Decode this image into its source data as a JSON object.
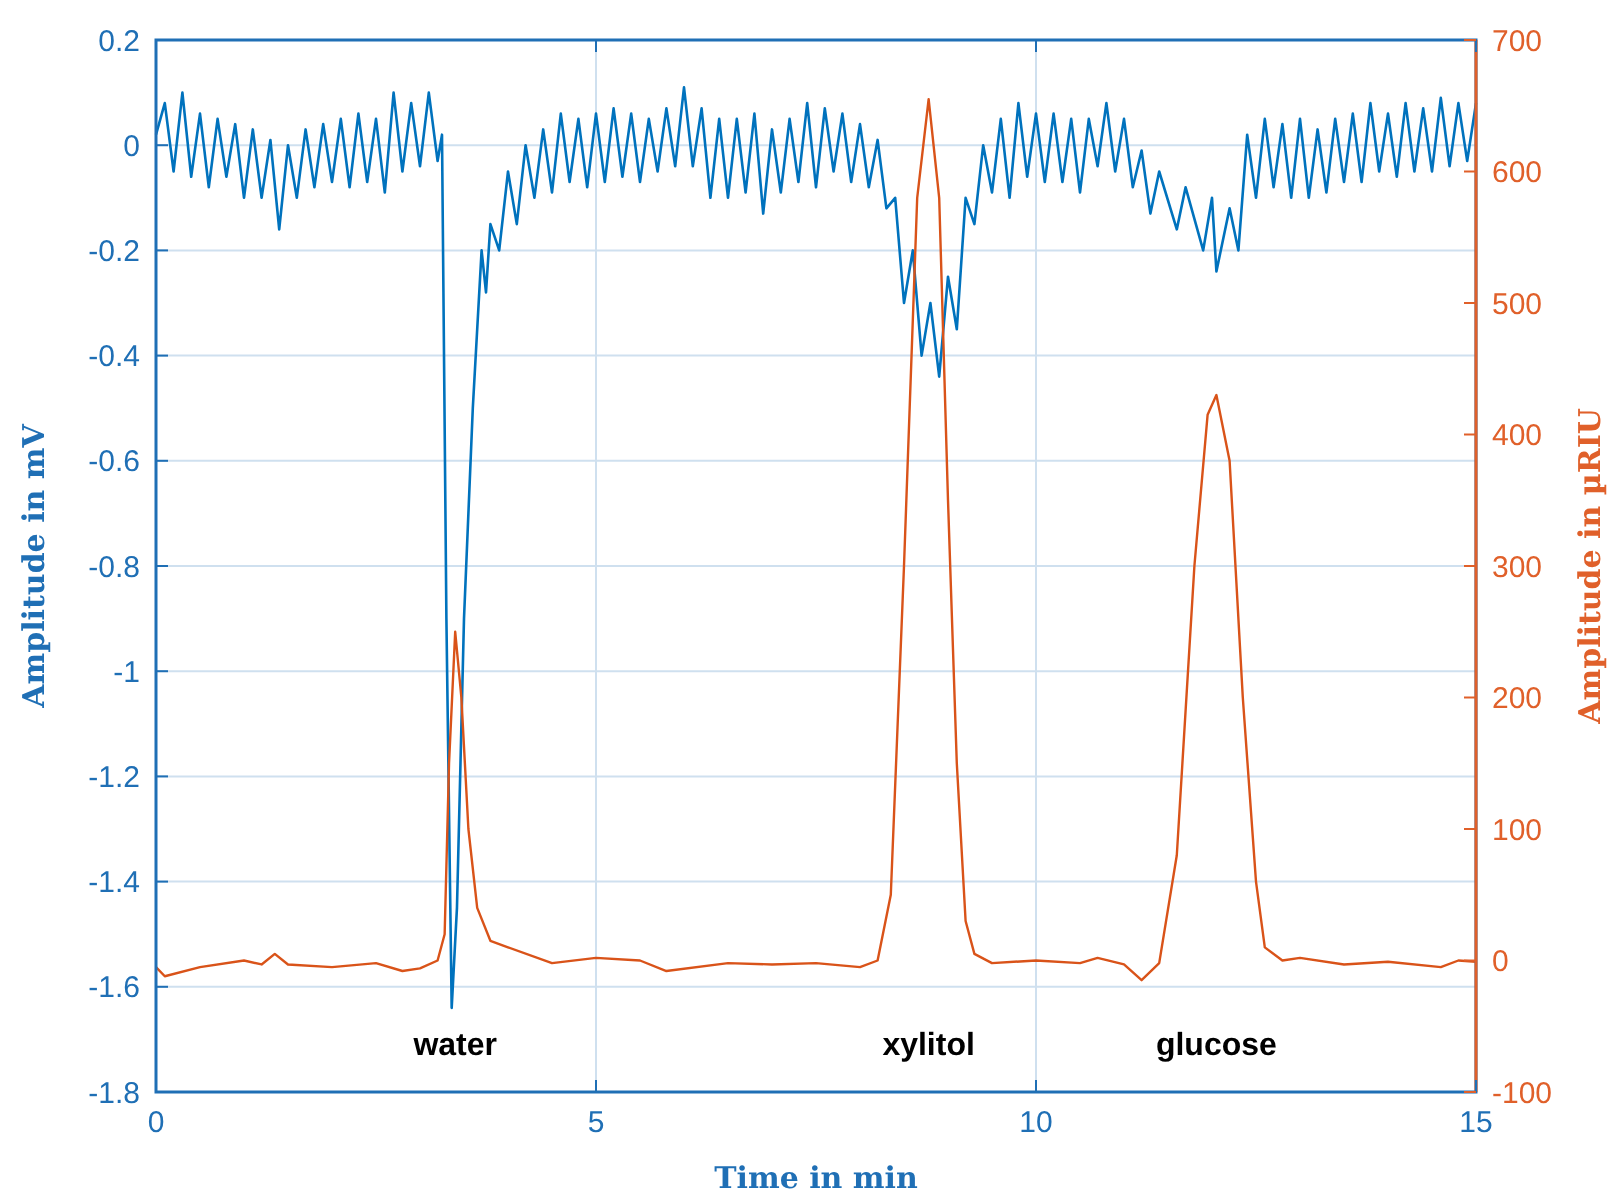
{
  "chart_data": {
    "type": "line",
    "xlabel": "Time in min",
    "ylabel": "Amplitude in mV",
    "y2label": "Amplitude in µRIU",
    "xlim": [
      0,
      15
    ],
    "xticks": [
      0,
      5,
      10,
      15
    ],
    "ylim": [
      -1.8,
      0.2
    ],
    "yticks": [
      -1.8,
      -1.6,
      -1.4,
      -1.2,
      -1,
      -0.8,
      -0.6,
      -0.4,
      -0.2,
      0,
      0.2
    ],
    "y2lim": [
      -100,
      700
    ],
    "y2ticks": [
      -100,
      0,
      100,
      200,
      300,
      400,
      500,
      600,
      700
    ],
    "grid": true,
    "line_style": "solid",
    "marker": "none",
    "annotations": [
      "water",
      "xylitol",
      "glucose"
    ],
    "series": [
      {
        "color": "#0072bd",
        "x": [
          0,
          0.1,
          0.2,
          0.3,
          0.4,
          0.5,
          0.6,
          0.7,
          0.8,
          0.9,
          1.0,
          1.1,
          1.2,
          1.3,
          1.4,
          1.5,
          1.6,
          1.7,
          1.8,
          1.9,
          2.0,
          2.1,
          2.2,
          2.3,
          2.4,
          2.5,
          2.6,
          2.7,
          2.8,
          2.9,
          3.0,
          3.1,
          3.2,
          3.25,
          3.3,
          3.36,
          3.42,
          3.5,
          3.6,
          3.65,
          3.7,
          3.75,
          3.8,
          3.9,
          4.0,
          4.1,
          4.2,
          4.3,
          4.4,
          4.5,
          4.6,
          4.7,
          4.8,
          4.9,
          5.0,
          5.1,
          5.2,
          5.3,
          5.4,
          5.5,
          5.6,
          5.7,
          5.8,
          5.9,
          6.0,
          6.1,
          6.2,
          6.3,
          6.4,
          6.5,
          6.6,
          6.7,
          6.8,
          6.9,
          7.0,
          7.1,
          7.2,
          7.3,
          7.4,
          7.5,
          7.6,
          7.7,
          7.8,
          7.9,
          8.0,
          8.1,
          8.2,
          8.3,
          8.4,
          8.5,
          8.6,
          8.7,
          8.8,
          8.9,
          9.0,
          9.1,
          9.2,
          9.3,
          9.4,
          9.5,
          9.6,
          9.7,
          9.8,
          9.9,
          10.0,
          10.1,
          10.2,
          10.3,
          10.4,
          10.5,
          10.6,
          10.7,
          10.8,
          10.9,
          11.0,
          11.1,
          11.2,
          11.3,
          11.4,
          11.6,
          11.7,
          11.9,
          12.0,
          12.05,
          12.2,
          12.3,
          12.4,
          12.5,
          12.6,
          12.7,
          12.8,
          12.9,
          13.0,
          13.1,
          13.2,
          13.3,
          13.4,
          13.5,
          13.6,
          13.7,
          13.8,
          13.9,
          14.0,
          14.1,
          14.2,
          14.3,
          14.4,
          14.5,
          14.6,
          14.7,
          14.8,
          14.9,
          15.0
        ],
        "values": [
          0.02,
          0.08,
          -0.05,
          0.1,
          -0.06,
          0.06,
          -0.08,
          0.05,
          -0.06,
          0.04,
          -0.1,
          0.03,
          -0.1,
          0.01,
          -0.16,
          0.0,
          -0.1,
          0.03,
          -0.08,
          0.04,
          -0.07,
          0.05,
          -0.08,
          0.06,
          -0.07,
          0.05,
          -0.09,
          0.1,
          -0.05,
          0.08,
          -0.04,
          0.1,
          -0.03,
          0.02,
          -0.9,
          -1.64,
          -1.45,
          -0.9,
          -0.5,
          -0.35,
          -0.2,
          -0.28,
          -0.15,
          -0.2,
          -0.05,
          -0.15,
          0.0,
          -0.1,
          0.03,
          -0.09,
          0.06,
          -0.07,
          0.05,
          -0.08,
          0.06,
          -0.07,
          0.07,
          -0.06,
          0.06,
          -0.07,
          0.05,
          -0.05,
          0.07,
          -0.04,
          0.11,
          -0.04,
          0.07,
          -0.1,
          0.05,
          -0.1,
          0.05,
          -0.09,
          0.06,
          -0.13,
          0.03,
          -0.09,
          0.05,
          -0.07,
          0.08,
          -0.08,
          0.07,
          -0.05,
          0.06,
          -0.07,
          0.04,
          -0.08,
          0.01,
          -0.12,
          -0.1,
          -0.3,
          -0.2,
          -0.4,
          -0.3,
          -0.44,
          -0.25,
          -0.35,
          -0.1,
          -0.15,
          0.0,
          -0.09,
          0.05,
          -0.1,
          0.08,
          -0.06,
          0.06,
          -0.07,
          0.06,
          -0.07,
          0.05,
          -0.09,
          0.05,
          -0.04,
          0.08,
          -0.05,
          0.05,
          -0.08,
          -0.01,
          -0.13,
          -0.05,
          -0.16,
          -0.08,
          -0.2,
          -0.1,
          -0.24,
          -0.12,
          -0.2,
          0.02,
          -0.1,
          0.05,
          -0.08,
          0.04,
          -0.1,
          0.05,
          -0.1,
          0.03,
          -0.09,
          0.05,
          -0.07,
          0.06,
          -0.07,
          0.08,
          -0.05,
          0.06,
          -0.06,
          0.08,
          -0.05,
          0.07,
          -0.05,
          0.09,
          -0.04,
          0.08,
          -0.03,
          0.08
        ]
      },
      {
        "color": "#d95319",
        "axis": "y2",
        "x": [
          0,
          0.1,
          0.5,
          1.0,
          1.2,
          1.35,
          1.5,
          2.0,
          2.5,
          2.8,
          3.0,
          3.2,
          3.28,
          3.33,
          3.4,
          3.47,
          3.55,
          3.65,
          3.8,
          4.0,
          4.5,
          5.0,
          5.5,
          5.8,
          6.5,
          7.0,
          7.5,
          8.0,
          8.2,
          8.35,
          8.5,
          8.65,
          8.78,
          8.9,
          9.0,
          9.1,
          9.2,
          9.3,
          9.5,
          10.0,
          10.5,
          10.7,
          11.0,
          11.2,
          11.4,
          11.6,
          11.8,
          11.95,
          12.05,
          12.2,
          12.35,
          12.5,
          12.6,
          12.8,
          13.0,
          13.5,
          14.0,
          14.6,
          14.8,
          15.0
        ],
        "values": [
          -5,
          -12,
          -5,
          0,
          -3,
          5,
          -3,
          -5,
          -2,
          -8,
          -6,
          0,
          20,
          150,
          250,
          200,
          100,
          40,
          15,
          10,
          -2,
          2,
          0,
          -8,
          -2,
          -3,
          -2,
          -5,
          0,
          50,
          300,
          580,
          655,
          580,
          350,
          150,
          30,
          5,
          -2,
          0,
          -2,
          2,
          -3,
          -15,
          -2,
          80,
          300,
          415,
          430,
          380,
          200,
          60,
          10,
          0,
          2,
          -3,
          -1,
          -5,
          0,
          -1
        ]
      }
    ]
  }
}
